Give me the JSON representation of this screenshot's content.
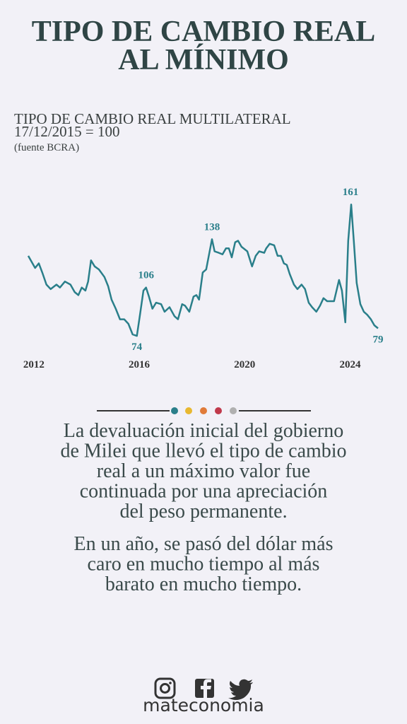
{
  "header": {
    "title": [
      "TIPO DE CAMBIO REAL",
      "AL MÍNIMO"
    ]
  },
  "chart_data": {
    "type": "line",
    "subtitle": [
      "TIPO DE CAMBIO REAL MULTILATERAL",
      "17/12/2015 = 100"
    ],
    "source": "(fuente BCRA)",
    "xlim": [
      2011.79,
      2025.06
    ],
    "xticks": [
      2012,
      2016,
      2020,
      2024
    ],
    "ylim": [
      60,
      170
    ],
    "series": [
      {
        "color": "#2a7f8a",
        "x": [
          2011.79,
          2011.95,
          2012.05,
          2012.19,
          2012.32,
          2012.48,
          2012.64,
          2012.86,
          2012.99,
          2013.18,
          2013.39,
          2013.55,
          2013.69,
          2013.82,
          2013.96,
          2014.06,
          2014.17,
          2014.31,
          2014.47,
          2014.68,
          2014.82,
          2014.95,
          2015.11,
          2015.27,
          2015.43,
          2015.59,
          2015.75,
          2015.91,
          2016.02,
          2016.16,
          2016.26,
          2016.37,
          2016.5,
          2016.64,
          2016.83,
          2016.96,
          2017.15,
          2017.34,
          2017.47,
          2017.63,
          2017.74,
          2017.9,
          2018.06,
          2018.17,
          2018.27,
          2018.41,
          2018.54,
          2018.65,
          2018.76,
          2018.86,
          2019.02,
          2019.16,
          2019.29,
          2019.4,
          2019.51,
          2019.64,
          2019.75,
          2019.88,
          2020.1,
          2020.28,
          2020.42,
          2020.55,
          2020.74,
          2020.82,
          2020.95,
          2021.12,
          2021.25,
          2021.38,
          2021.49,
          2021.6,
          2021.71,
          2021.87,
          2022.0,
          2022.16,
          2022.29,
          2022.43,
          2022.56,
          2022.72,
          2022.86,
          2022.99,
          2023.13,
          2023.26,
          2023.39,
          2023.58,
          2023.69,
          2023.82,
          2023.93,
          2024.04,
          2024.14,
          2024.25,
          2024.39,
          2024.52,
          2024.65,
          2024.79,
          2024.92,
          2025.06
        ],
        "values": [
          127,
          122,
          119,
          122,
          116,
          108,
          105,
          108,
          106,
          110,
          108,
          103,
          101,
          106,
          104,
          110,
          124,
          120,
          118,
          113,
          107,
          98,
          92,
          85,
          85,
          82,
          75,
          74,
          87,
          104,
          106,
          100,
          92,
          96,
          95,
          90,
          93,
          87,
          85,
          95,
          94,
          90,
          100,
          101,
          98,
          116,
          118,
          128,
          138,
          130,
          129,
          128,
          132,
          132,
          126,
          136,
          137,
          133,
          130,
          120,
          127,
          130,
          129,
          132,
          135,
          134,
          127,
          127,
          122,
          121,
          115,
          108,
          105,
          108,
          105,
          96,
          93,
          90,
          94,
          99,
          97,
          97,
          97,
          111,
          104,
          83,
          137,
          161,
          137,
          109,
          95,
          90,
          88,
          85,
          81,
          79
        ]
      }
    ]
  },
  "text": [
    [
      "La devaluación inicial del gobierno",
      "de Milei que llevó el tipo de cambio",
      "real a un máximo valor fue",
      "continuada por una apreciación",
      "del peso permanente."
    ],
    [
      "En un año, se pasó del dólar más",
      "caro en mucho tiempo al más",
      "barato en mucho tiempo."
    ]
  ],
  "footer": {
    "brand": "mateconomia"
  }
}
